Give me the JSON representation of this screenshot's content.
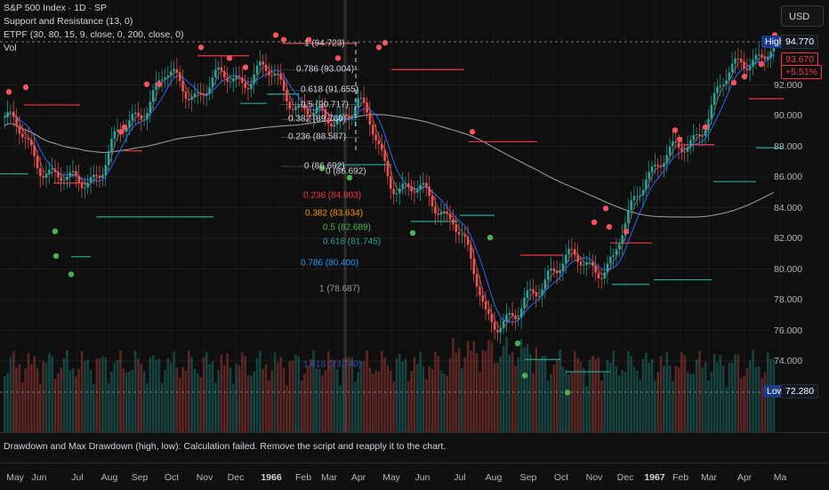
{
  "legend": {
    "title": "S&P 500 Index · 1D · SP",
    "indicator_1": "Support and Resistance (13, 0)",
    "indicator_2": "ETPF (30, 80, 15, 9, close, 0, 200, close, 0)",
    "indicator_3": "Vol"
  },
  "currency_button": "USD",
  "price_axis": {
    "labels": [
      "92.000",
      "90.000",
      "88.000",
      "86.000",
      "84.000",
      "82.000",
      "80.000",
      "78.000",
      "76.000",
      "74.000"
    ],
    "high_tag": "High",
    "high_value": "94.770",
    "last_price": "93.670",
    "last_change": "+5.51%",
    "low_tag": "Low",
    "low_value": "72.280"
  },
  "fib_upper": [
    {
      "label": "1 (94.723)"
    },
    {
      "label": "0.786 (93.004)"
    },
    {
      "label": "0.618 (91.655)"
    },
    {
      "label": "0.5 (90.717)"
    },
    {
      "label": "0.382 (89.760)"
    },
    {
      "label": "0.236 (88.587)"
    },
    {
      "label": "0 (86.692)"
    },
    {
      "label": "0 (86.692)"
    }
  ],
  "fib_lower": [
    {
      "label": "0.236 (84.803)",
      "color": "#f23645"
    },
    {
      "label": "0.382 (83.634)",
      "color": "#ff9800"
    },
    {
      "label": "0.5 (82.689)",
      "color": "#4caf50"
    },
    {
      "label": "0.618 (81.745)",
      "color": "#26a69a"
    },
    {
      "label": "0.786 (80.400)",
      "color": "#2196f3"
    },
    {
      "label": "1 (78.687)",
      "color": "#9598a1"
    },
    {
      "label": "1.618 (73.740)",
      "color": "#3f51b5"
    }
  ],
  "message": "Drawdown and Max Drawdown (high, low): Calculation failed. Remove the script and reapply it to the chart.",
  "time_axis": [
    "May",
    "Jun",
    "Jul",
    "Aug",
    "Sep",
    "Oct",
    "Nov",
    "Dec",
    "1966",
    "Feb",
    "Mar",
    "Apr",
    "May",
    "Jun",
    "Jul",
    "Aug",
    "Sep",
    "Oct",
    "Nov",
    "Dec",
    "1967",
    "Feb",
    "Mar",
    "Apr",
    "Ma"
  ],
  "colors": {
    "up": "#26a69a",
    "down": "#ef5350",
    "pivot_high": "#f7525f",
    "pivot_low": "#4caf50",
    "resistance": "#f23645",
    "support": "#22ab94",
    "ma_blue": "#2962ff",
    "ma_gray": "#9598a1"
  },
  "chart_data": {
    "type": "candlestick",
    "symbol": "S&P 500 Index",
    "interval": "1D",
    "ylim": [
      72.0,
      95.5
    ],
    "x": [
      "May 1965",
      "Jun 1965",
      "Jul 1965",
      "Aug 1965",
      "Sep 1965",
      "Oct 1965",
      "Nov 1965",
      "Dec 1965",
      "Jan 1966",
      "Feb 1966",
      "Mar 1966",
      "Apr 1966",
      "May 1966",
      "Jun 1966",
      "Jul 1966",
      "Aug 1966",
      "Sep 1966",
      "Oct 1966",
      "Nov 1966",
      "Dec 1966",
      "Jan 1967",
      "Feb 1967",
      "Mar 1967",
      "Apr 1967",
      "May 1967"
    ],
    "close_approx": [
      89.9,
      87.3,
      85.3,
      86.6,
      89.9,
      92.4,
      91.6,
      92.4,
      92.9,
      91.2,
      89.3,
      91.1,
      86.1,
      84.7,
      83.6,
      77.1,
      76.6,
      80.2,
      80.4,
      80.3,
      86.6,
      87.4,
      90.2,
      94.0,
      93.7
    ],
    "high": 94.77,
    "low": 72.28,
    "last": 93.67,
    "change_pct": 5.51
  }
}
